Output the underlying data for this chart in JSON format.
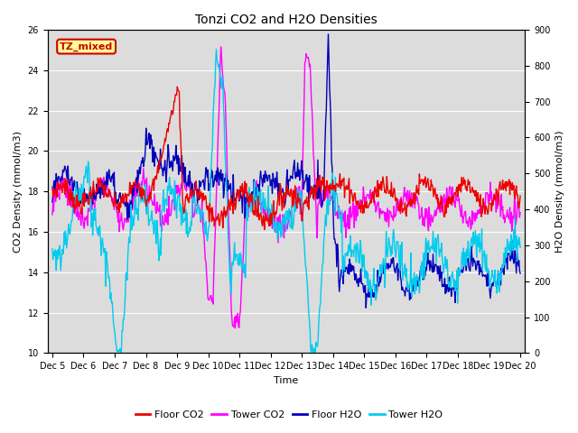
{
  "title": "Tonzi CO2 and H2O Densities",
  "xlabel": "Time",
  "ylabel_left": "CO2 Density (mmol/m3)",
  "ylabel_right": "H2O Density (mmol/m3)",
  "annotation": "TZ_mixed",
  "xlim_days": [
    4.85,
    20.15
  ],
  "ylim_left": [
    10,
    26
  ],
  "ylim_right": [
    0,
    900
  ],
  "xtick_labels": [
    "Dec 5",
    "Dec 6",
    "Dec 7",
    "Dec 8",
    "Dec 9",
    "Dec 10",
    "Dec 11",
    "Dec 12",
    "Dec 13",
    "Dec 14",
    "Dec 15",
    "Dec 16",
    "Dec 17",
    "Dec 18",
    "Dec 19",
    "Dec 20"
  ],
  "xtick_positions": [
    5,
    6,
    7,
    8,
    9,
    10,
    11,
    12,
    13,
    14,
    15,
    16,
    17,
    18,
    19,
    20
  ],
  "yticks_left": [
    10,
    12,
    14,
    16,
    18,
    20,
    22,
    24,
    26
  ],
  "yticks_right": [
    0,
    100,
    200,
    300,
    400,
    500,
    600,
    700,
    800,
    900
  ],
  "colors": {
    "floor_co2": "#EE0000",
    "tower_co2": "#FF00FF",
    "floor_h2o": "#0000BB",
    "tower_h2o": "#00CCEE"
  },
  "legend_labels": [
    "Floor CO2",
    "Tower CO2",
    "Floor H2O",
    "Tower H2O"
  ],
  "bg_color": "#DCDCDC",
  "fig_bg": "#FFFFFF",
  "grid_color": "#FFFFFF",
  "linewidth": 1.0,
  "title_fontsize": 10,
  "label_fontsize": 8,
  "tick_fontsize": 7
}
